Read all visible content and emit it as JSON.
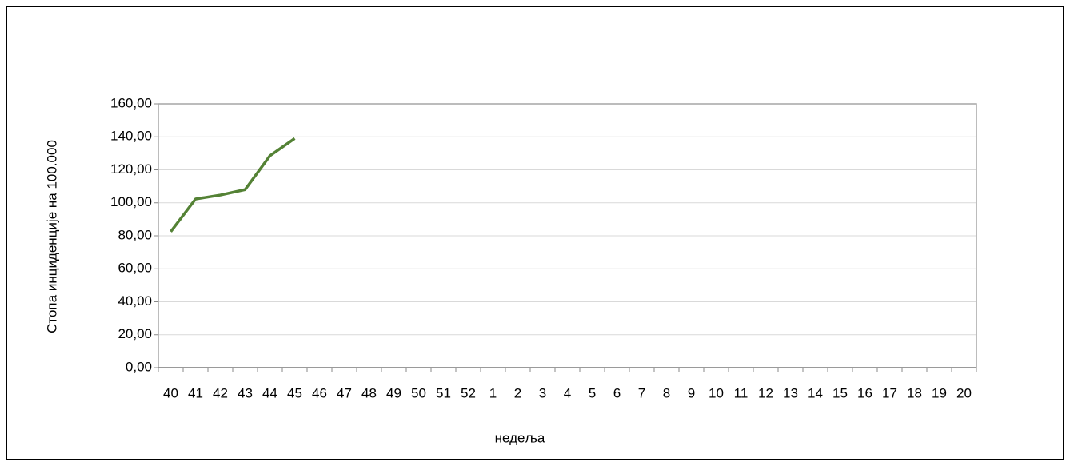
{
  "chart_data": {
    "type": "line",
    "xlabel": "недеља",
    "ylabel": "Стопа инциденције на 100.000",
    "categories": [
      "40",
      "41",
      "42",
      "43",
      "44",
      "45",
      "46",
      "47",
      "48",
      "49",
      "50",
      "51",
      "52",
      "1",
      "2",
      "3",
      "4",
      "5",
      "6",
      "7",
      "8",
      "9",
      "10",
      "11",
      "12",
      "13",
      "14",
      "15",
      "16",
      "17",
      "18",
      "19",
      "20"
    ],
    "series": [
      {
        "color": "#548235",
        "values": [
          82.5,
          102.3,
          104.7,
          108,
          128.5,
          139,
          null,
          null,
          null,
          null,
          null,
          null,
          null,
          null,
          null,
          null,
          null,
          null,
          null,
          null,
          null,
          null,
          null,
          null,
          null,
          null,
          null,
          null,
          null,
          null,
          null,
          null,
          null
        ]
      }
    ],
    "ylim": [
      0,
      160
    ],
    "yticks": [
      {
        "value": 0,
        "label": "0,00"
      },
      {
        "value": 20,
        "label": "20,00"
      },
      {
        "value": 40,
        "label": "40,00"
      },
      {
        "value": 60,
        "label": "60,00"
      },
      {
        "value": 80,
        "label": "80,00"
      },
      {
        "value": 100,
        "label": "100,00"
      },
      {
        "value": 120,
        "label": "120,00"
      },
      {
        "value": 140,
        "label": "140,00"
      },
      {
        "value": 160,
        "label": "160,00"
      }
    ],
    "grid": true
  }
}
